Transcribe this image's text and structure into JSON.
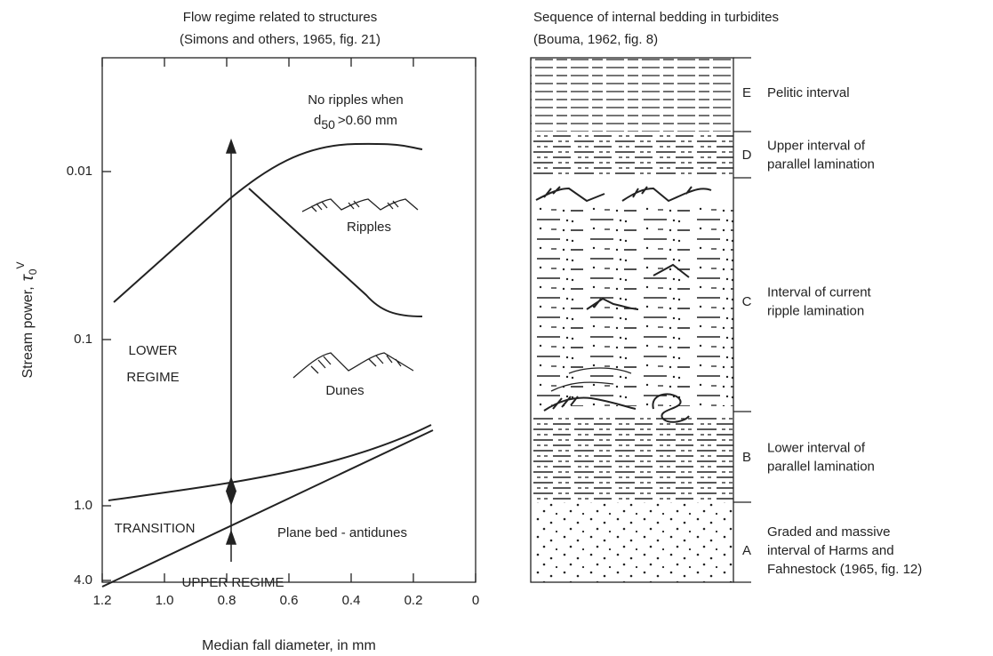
{
  "left_panel": {
    "title": [
      "Flow regime related to structures",
      "(Simons and others, 1965, fig. 21)"
    ],
    "y_axis_label": {
      "text": "Stream power,",
      "symbol": "τ",
      "sub": "0",
      "sup": "V"
    },
    "x_axis_label": "Median fall diameter, in mm",
    "y_tick_labels": [
      "0.01",
      "0.1",
      "1.0",
      "4.0"
    ],
    "x_tick_labels": [
      "1.2",
      "1.0",
      "0.8",
      "0.6",
      "0.4",
      "0.2",
      "0"
    ],
    "annotations": {
      "no_ripples": "No ripples when",
      "d50": {
        "d": "d",
        "sub": "50",
        "rest": ">0.60 mm"
      },
      "ripples": "Ripples",
      "lower_regime": [
        "LOWER",
        "REGIME"
      ],
      "dunes": "Dunes",
      "transition": "TRANSITION",
      "plane_bed": "Plane bed - antidunes",
      "upper_regime": "UPPER REGIME"
    }
  },
  "right_panel": {
    "title": [
      "Sequence of internal bedding in turbidites",
      "(Bouma, 1962, fig. 8)"
    ],
    "intervals": [
      {
        "letter": "E",
        "lines": [
          "Pelitic interval"
        ]
      },
      {
        "letter": "D",
        "lines": [
          "Upper interval of",
          "parallel lamination"
        ]
      },
      {
        "letter": "C",
        "lines": [
          "Interval of current",
          "ripple lamination"
        ]
      },
      {
        "letter": "B",
        "lines": [
          "Lower interval of",
          "parallel lamination"
        ]
      },
      {
        "letter": "A",
        "lines": [
          "Graded and massive",
          "interval of Harms and",
          "Fahnestock (1965, fig. 12)"
        ]
      }
    ]
  }
}
